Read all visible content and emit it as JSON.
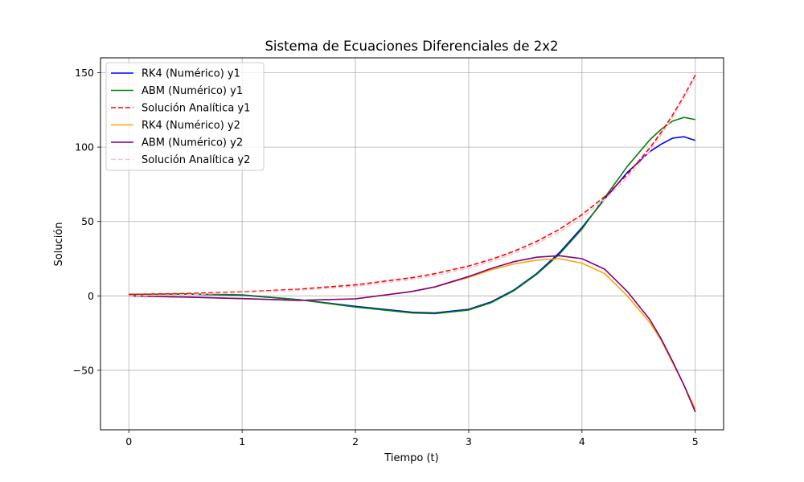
{
  "chart_data": {
    "type": "line",
    "title": "Sistema de Ecuaciones Diferenciales de 2x2",
    "xlabel": "Tiempo (t)",
    "ylabel": "Solución",
    "xlim": [
      -0.25,
      5.25
    ],
    "ylim": [
      -90,
      160
    ],
    "xticks": [
      0,
      1,
      2,
      3,
      4,
      5
    ],
    "yticks": [
      -50,
      0,
      50,
      100,
      150
    ],
    "xtick_labels": [
      "0",
      "1",
      "2",
      "3",
      "4",
      "5"
    ],
    "ytick_labels": [
      "−50",
      "0",
      "50",
      "100",
      "150"
    ],
    "grid": true,
    "legend_position": "top-left",
    "x": [
      0,
      0.5,
      1.0,
      1.5,
      2.0,
      2.5,
      2.7,
      3.0,
      3.2,
      3.4,
      3.6,
      3.8,
      4.0,
      4.2,
      4.4,
      4.6,
      4.7,
      4.8,
      4.9,
      5.0
    ],
    "series": [
      {
        "name": "RK4 (Numérico) y1",
        "color": "#0000ff",
        "dash": "solid",
        "values": [
          1.0,
          1.2,
          0.5,
          -2.5,
          -7.0,
          -11.0,
          -11.5,
          -9.0,
          -4.0,
          4.0,
          15.0,
          29.0,
          46.0,
          65.0,
          83.0,
          97.0,
          102.0,
          106.0,
          107.0,
          104.5
        ]
      },
      {
        "name": "ABM (Numérico) y1",
        "color": "#008000",
        "dash": "solid",
        "values": [
          1.0,
          1.3,
          0.7,
          -2.5,
          -7.5,
          -11.5,
          -12.0,
          -9.5,
          -4.5,
          3.5,
          14.5,
          28.0,
          45.0,
          66.0,
          87.0,
          105.0,
          112.0,
          117.5,
          120.0,
          118.5
        ]
      },
      {
        "name": "Solución Analítica y1",
        "color": "#ff0000",
        "dash": "dashed",
        "values": [
          1.0,
          1.6,
          2.7,
          4.5,
          7.4,
          12.2,
          14.9,
          20.1,
          24.5,
          30.0,
          36.6,
          44.7,
          54.6,
          66.7,
          81.5,
          99.5,
          110.0,
          121.5,
          134.3,
          148.4
        ]
      },
      {
        "name": "RK4 (Numérico) y2",
        "color": "#ffa500",
        "dash": "solid",
        "values": [
          0.0,
          -0.8,
          -1.8,
          -3.0,
          -2.0,
          3.0,
          6.0,
          12.5,
          17.5,
          21.5,
          24.0,
          25.0,
          22.0,
          15.0,
          0.0,
          -18.0,
          -30.0,
          -45.0,
          -60.0,
          -76.0
        ]
      },
      {
        "name": "ABM (Numérico) y2",
        "color": "#800080",
        "dash": "solid",
        "values": [
          0.0,
          -0.8,
          -1.8,
          -3.0,
          -2.0,
          3.0,
          6.0,
          13.0,
          18.5,
          23.0,
          26.0,
          27.0,
          25.0,
          18.0,
          3.0,
          -16.0,
          -29.0,
          -44.0,
          -60.0,
          -78.0
        ]
      },
      {
        "name": "Solución Analítica y2",
        "color": "#ffc0cb",
        "dash": "dashed",
        "values": [
          0.0,
          0.8,
          2.2,
          3.8,
          6.4,
          11.0,
          13.6,
          18.6,
          23.2,
          28.6,
          35.0,
          42.9,
          52.6,
          64.8,
          79.5,
          97.5,
          108.5,
          120.0,
          133.0,
          147.0
        ]
      }
    ]
  }
}
